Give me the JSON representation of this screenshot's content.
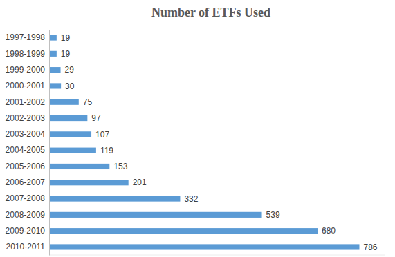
{
  "chart_data": {
    "type": "bar",
    "title": "Number of ETFs Used",
    "orientation": "horizontal",
    "categories": [
      "1997-1998",
      "1998-1999",
      "1999-2000",
      "2000-2001",
      "2001-2002",
      "2002-2003",
      "2003-2004",
      "2004-2005",
      "2005-2006",
      "2006-2007",
      "2007-2008",
      "2008-2009",
      "2009-2010",
      "2010-2011"
    ],
    "values": [
      19,
      19,
      29,
      30,
      75,
      97,
      107,
      119,
      153,
      201,
      332,
      539,
      680,
      786
    ],
    "color": "#5b9bd5",
    "xlim": [
      0,
      850
    ],
    "data_labels": true,
    "tick_labels": "y",
    "grid": false
  }
}
